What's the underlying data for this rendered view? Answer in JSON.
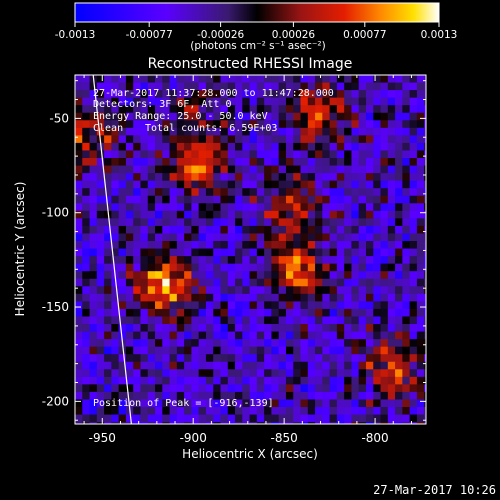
{
  "chart_data": {
    "type": "heatmap",
    "title": "Reconstructed RHESSI Image",
    "xlabel": "Heliocentric X (arcsec)",
    "ylabel": "Heliocentric Y (arcsec)",
    "xlim": [
      -965,
      -772
    ],
    "ylim": [
      -212,
      -27
    ],
    "x_ticks": [
      -950,
      -900,
      -850,
      -800
    ],
    "y_ticks": [
      -50,
      -100,
      -150,
      -200
    ],
    "colorbar": {
      "range": [
        -0.0013,
        0.0013
      ],
      "ticks": [
        -0.0013,
        -0.00077,
        -0.00026,
        0.00026,
        0.00077,
        0.0013
      ],
      "tick_labels": [
        "-0.0013",
        "-0.00077",
        "-0.00026",
        "0.00026",
        "0.00077",
        "0.0013"
      ],
      "unit_label": "(photons cm⁻² s⁻¹ asec⁻²)"
    },
    "sources": [
      {
        "x": -916,
        "y": -139,
        "value": 0.0013
      },
      {
        "x": -897,
        "y": -76,
        "value": 0.0011
      },
      {
        "x": -843,
        "y": -130,
        "value": 0.0012
      },
      {
        "x": -846,
        "y": -95,
        "value": 0.0009
      },
      {
        "x": -830,
        "y": -47,
        "value": 0.001
      },
      {
        "x": -790,
        "y": -183,
        "value": 0.001
      },
      {
        "x": -958,
        "y": -60,
        "value": 0.0009
      },
      {
        "x": -903,
        "y": -48,
        "value": 0.0006
      }
    ],
    "limb_x_at_top": -955,
    "limb_x_at_bottom": -934
  },
  "annotations": {
    "time_range": "27-Mar-2017 11:37:28.000 to 11:47:28.000",
    "detectors": "Detectors: 3F 6F, Att 0",
    "energy": "Energy Range: 25.0 - 50.0 keV",
    "clean": "Clean",
    "counts": "Total counts: 6.59E+03",
    "peak": "Position of Peak = [-916,-139]"
  },
  "timestamp": "27-Mar-2017 10:26",
  "colors": {
    "background": "#000000",
    "text": "#ffffff"
  }
}
